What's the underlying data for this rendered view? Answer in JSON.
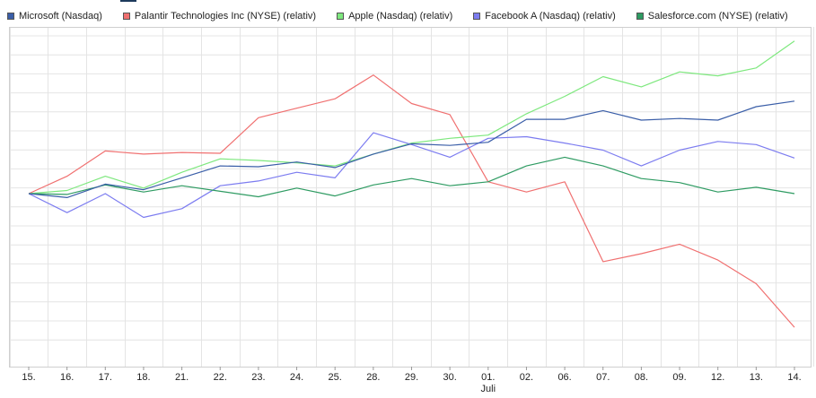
{
  "chart_data": {
    "type": "line",
    "x": [
      "15.",
      "16.",
      "17.",
      "18.",
      "21.",
      "22.",
      "23.",
      "24.",
      "25.",
      "28.",
      "29.",
      "30.",
      "01.",
      "02.",
      "06.",
      "07.",
      "08.",
      "09.",
      "12.",
      "13.",
      "14."
    ],
    "x_sublabel": {
      "index": 12,
      "text": "Juli"
    },
    "grid": true,
    "legend_position": "top",
    "series": [
      {
        "name": "Microsoft (Nasdaq)",
        "color": "#3a5ea8",
        "values": [
          0,
          -0.5,
          1.2,
          0.5,
          2.0,
          3.5,
          3.4,
          4.0,
          3.3,
          5.0,
          6.3,
          6.1,
          6.5,
          9.4,
          9.4,
          10.5,
          9.3,
          9.5,
          9.3,
          11.0,
          11.7
        ]
      },
      {
        "name": "Palantir Technologies Inc (NYSE) (relativ)",
        "color": "#f07070",
        "values": [
          0,
          2.2,
          5.4,
          5.0,
          5.2,
          5.1,
          9.6,
          10.8,
          12.0,
          15.0,
          11.4,
          10.0,
          1.5,
          0.2,
          1.5,
          -8.6,
          -7.6,
          -6.4,
          -8.4,
          -11.4,
          -16.9
        ]
      },
      {
        "name": "Apple (Nasdaq) (relativ)",
        "color": "#7ee87e",
        "values": [
          0,
          0.4,
          2.2,
          0.7,
          2.7,
          4.4,
          4.2,
          3.9,
          3.5,
          5.0,
          6.4,
          7.0,
          7.4,
          10.1,
          12.3,
          14.8,
          13.5,
          15.4,
          14.9,
          15.9,
          19.3
        ]
      },
      {
        "name": "Facebook A (Nasdaq) (relativ)",
        "color": "#7c7cf0",
        "values": [
          0,
          -2.4,
          0,
          -3.0,
          -1.9,
          1.0,
          1.6,
          2.7,
          2.0,
          7.7,
          6.2,
          4.6,
          7.0,
          7.2,
          6.4,
          5.5,
          3.5,
          5.5,
          6.6,
          6.2,
          4.5
        ]
      },
      {
        "name": "Salesforce.com (NYSE) (relativ)",
        "color": "#2e9b62",
        "values": [
          0,
          -0.1,
          1.1,
          0.2,
          1.0,
          0.3,
          -0.4,
          0.7,
          -0.3,
          1.1,
          1.9,
          1.0,
          1.5,
          3.5,
          4.6,
          3.5,
          1.9,
          1.4,
          0.2,
          0.8,
          0.0
        ]
      }
    ]
  }
}
